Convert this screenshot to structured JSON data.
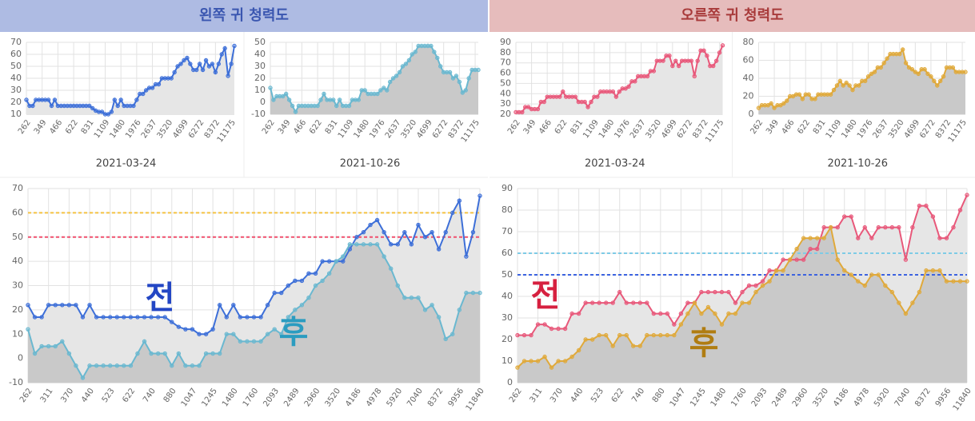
{
  "chart_data": [
    {
      "type": "line",
      "title": "왼쪽 귀 청력도",
      "header_color": "#aebbe3",
      "title_color": "#3a56b0",
      "categories": [
        262,
        null,
        null,
        311,
        null,
        null,
        370,
        null,
        null,
        440,
        null,
        null,
        523,
        null,
        null,
        622,
        null,
        null,
        740,
        null,
        null,
        880,
        null,
        null,
        1047,
        null,
        null,
        1245,
        null,
        null,
        1480,
        null,
        null,
        1760,
        null,
        null,
        2093,
        null,
        null,
        2489,
        null,
        null,
        2960,
        null,
        null,
        3520,
        null,
        null,
        4186,
        null,
        null,
        4978,
        null,
        null,
        5920,
        null,
        null,
        7040,
        null,
        null,
        8372,
        null,
        null,
        9956,
        null,
        null,
        11840
      ],
      "small_categories": [
        262,
        null,
        null,
        null,
        null,
        349,
        null,
        null,
        null,
        null,
        466,
        null,
        null,
        null,
        null,
        622,
        null,
        null,
        null,
        null,
        831,
        null,
        null,
        null,
        null,
        1109,
        null,
        null,
        null,
        null,
        1480,
        null,
        null,
        null,
        null,
        1976,
        null,
        null,
        null,
        null,
        2637,
        null,
        null,
        null,
        null,
        3520,
        null,
        null,
        null,
        null,
        4699,
        null,
        null,
        null,
        null,
        6272,
        null,
        null,
        null,
        null,
        8372,
        null,
        null,
        null,
        null,
        11175,
        null
      ],
      "ylim": [
        -10,
        70
      ],
      "yticks": [
        -10,
        0,
        10,
        20,
        30,
        40,
        50,
        60,
        70
      ],
      "reference_lines": [
        {
          "value": 60,
          "color": "#f5c242"
        },
        {
          "value": 50,
          "color": "#f0506e"
        }
      ],
      "series": [
        {
          "name": "전",
          "color": "#3d6fd8",
          "label_color": "#2346c4",
          "fill": "#e6e6e6",
          "date": "2021-03-24",
          "ylim": [
            10,
            70
          ],
          "yticks": [
            10,
            20,
            30,
            40,
            50,
            60,
            70
          ],
          "values": [
            22,
            17,
            17,
            22,
            22,
            22,
            22,
            22,
            17,
            22,
            17,
            17,
            17,
            17,
            17,
            17,
            17,
            17,
            17,
            17,
            17,
            15,
            13,
            12,
            12,
            10,
            10,
            12,
            22,
            17,
            22,
            17,
            17,
            17,
            17,
            22,
            27,
            27,
            30,
            32,
            32,
            35,
            35,
            40,
            40,
            40,
            40,
            45,
            50,
            52,
            55,
            57,
            52,
            47,
            47,
            52,
            47,
            55,
            50,
            52,
            45,
            52,
            60,
            65,
            42,
            52,
            67
          ]
        },
        {
          "name": "후",
          "color": "#6ab8d0",
          "label_color": "#2b9cc0",
          "fill": "#c9c9c9",
          "date": "2021-10-26",
          "ylim": [
            -10,
            50
          ],
          "yticks": [
            -10,
            0,
            10,
            20,
            30,
            40,
            50
          ],
          "values": [
            12,
            2,
            5,
            5,
            5,
            7,
            2,
            -3,
            -8,
            -3,
            -3,
            -3,
            -3,
            -3,
            -3,
            -3,
            2,
            7,
            2,
            2,
            2,
            -3,
            2,
            -3,
            -3,
            -3,
            2,
            2,
            2,
            10,
            10,
            7,
            7,
            7,
            7,
            10,
            12,
            10,
            17,
            20,
            22,
            25,
            30,
            32,
            35,
            40,
            42,
            47,
            47,
            47,
            47,
            47,
            42,
            37,
            30,
            25,
            25,
            25,
            20,
            22,
            17,
            8,
            10,
            20,
            27,
            27,
            27
          ]
        }
      ]
    },
    {
      "type": "line",
      "title": "오른쪽 귀 청력도",
      "header_color": "#e6bcbc",
      "title_color": "#a83a3a",
      "categories": [
        262,
        null,
        null,
        311,
        null,
        null,
        370,
        null,
        null,
        440,
        null,
        null,
        523,
        null,
        null,
        622,
        null,
        null,
        740,
        null,
        null,
        880,
        null,
        null,
        1047,
        null,
        null,
        1245,
        null,
        null,
        1480,
        null,
        null,
        1760,
        null,
        null,
        2093,
        null,
        null,
        2489,
        null,
        null,
        2960,
        null,
        null,
        3520,
        null,
        null,
        4186,
        null,
        null,
        4978,
        null,
        null,
        5920,
        null,
        null,
        7040,
        null,
        null,
        8372,
        null,
        null,
        9956,
        null,
        null,
        11840
      ],
      "small_categories": [
        262,
        null,
        null,
        null,
        null,
        349,
        null,
        null,
        null,
        null,
        466,
        null,
        null,
        null,
        null,
        622,
        null,
        null,
        null,
        null,
        831,
        null,
        null,
        null,
        null,
        1109,
        null,
        null,
        null,
        null,
        1480,
        null,
        null,
        null,
        null,
        1976,
        null,
        null,
        null,
        null,
        2637,
        null,
        null,
        null,
        null,
        3520,
        null,
        null,
        null,
        null,
        4699,
        null,
        null,
        null,
        null,
        6272,
        null,
        null,
        null,
        null,
        8372,
        null,
        null,
        null,
        null,
        11175,
        null
      ],
      "ylim": [
        0,
        90
      ],
      "yticks": [
        0,
        10,
        20,
        30,
        40,
        50,
        60,
        70,
        80,
        90
      ],
      "reference_lines": [
        {
          "value": 60,
          "color": "#7ecbe6"
        },
        {
          "value": 50,
          "color": "#3c63e0"
        }
      ],
      "series": [
        {
          "name": "전",
          "color": "#e8587a",
          "label_color": "#d6203f",
          "fill": "#e6e6e6",
          "date": "2021-03-24",
          "ylim": [
            20,
            90
          ],
          "yticks": [
            20,
            30,
            40,
            50,
            60,
            70,
            80,
            90
          ],
          "values": [
            22,
            22,
            22,
            27,
            27,
            25,
            25,
            25,
            32,
            32,
            37,
            37,
            37,
            37,
            37,
            42,
            37,
            37,
            37,
            37,
            32,
            32,
            32,
            27,
            32,
            37,
            37,
            42,
            42,
            42,
            42,
            42,
            37,
            42,
            45,
            45,
            47,
            52,
            52,
            57,
            57,
            57,
            57,
            62,
            62,
            72,
            72,
            72,
            77,
            77,
            67,
            72,
            67,
            72,
            72,
            72,
            72,
            57,
            72,
            82,
            82,
            77,
            67,
            67,
            72,
            80,
            87
          ]
        },
        {
          "name": "후",
          "color": "#e0a93a",
          "label_color": "#b07d12",
          "fill": "#c9c9c9",
          "date": "2021-10-26",
          "ylim": [
            0,
            80
          ],
          "yticks": [
            0,
            20,
            40,
            60,
            80
          ],
          "values": [
            7,
            10,
            10,
            10,
            12,
            7,
            10,
            10,
            12,
            15,
            20,
            20,
            22,
            22,
            17,
            22,
            22,
            17,
            17,
            22,
            22,
            22,
            22,
            22,
            27,
            32,
            37,
            32,
            35,
            32,
            27,
            32,
            32,
            37,
            37,
            42,
            45,
            47,
            52,
            52,
            57,
            62,
            67,
            67,
            67,
            67,
            72,
            57,
            52,
            50,
            47,
            45,
            50,
            50,
            45,
            42,
            37,
            32,
            37,
            42,
            52,
            52,
            52,
            47,
            47,
            47,
            47
          ]
        }
      ]
    }
  ]
}
